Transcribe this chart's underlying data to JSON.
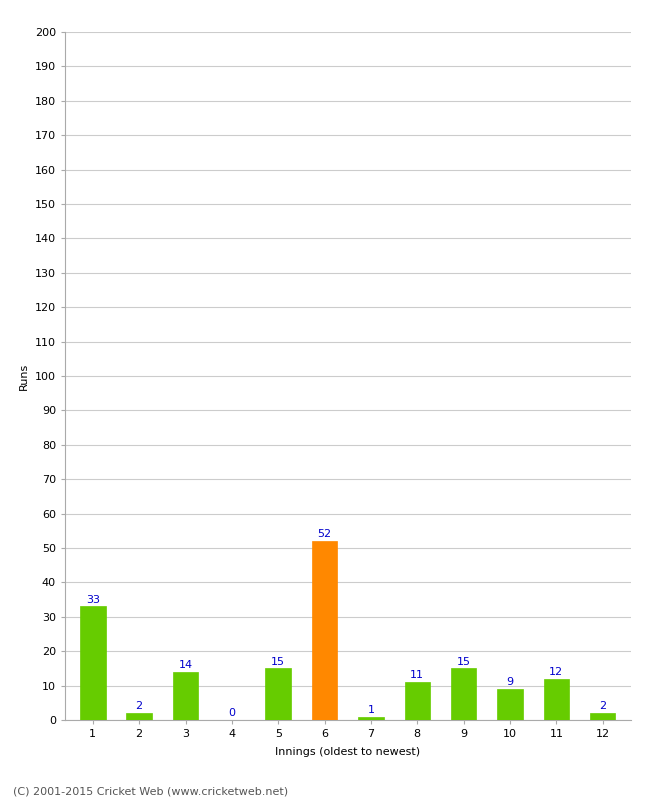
{
  "xlabel": "Innings (oldest to newest)",
  "ylabel": "Runs",
  "categories": [
    1,
    2,
    3,
    4,
    5,
    6,
    7,
    8,
    9,
    10,
    11,
    12
  ],
  "values": [
    33,
    2,
    14,
    0,
    15,
    52,
    1,
    11,
    15,
    9,
    12,
    2
  ],
  "bar_colors": [
    "#66cc00",
    "#66cc00",
    "#66cc00",
    "#66cc00",
    "#66cc00",
    "#ff8800",
    "#66cc00",
    "#66cc00",
    "#66cc00",
    "#66cc00",
    "#66cc00",
    "#66cc00"
  ],
  "label_color": "#0000cc",
  "ylim": [
    0,
    200
  ],
  "yticks": [
    0,
    10,
    20,
    30,
    40,
    50,
    60,
    70,
    80,
    90,
    100,
    110,
    120,
    130,
    140,
    150,
    160,
    170,
    180,
    190,
    200
  ],
  "background_color": "#ffffff",
  "plot_bg_color": "#ffffff",
  "grid_color": "#cccccc",
  "footer_text": "(C) 2001-2015 Cricket Web (www.cricketweb.net)",
  "bar_width": 0.55,
  "label_fontsize": 8,
  "axis_fontsize": 8,
  "ylabel_fontsize": 8,
  "xlabel_fontsize": 8,
  "footer_fontsize": 8
}
